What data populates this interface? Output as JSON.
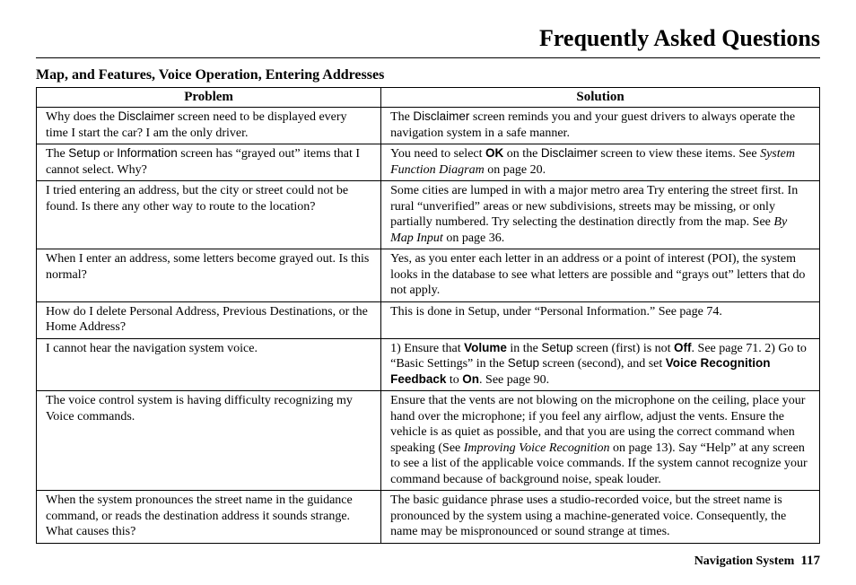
{
  "page_title": "Frequently Asked Questions",
  "section_heading": "Map, and Features, Voice Operation, Entering Addresses",
  "footer_label": "Navigation System",
  "footer_page": "117",
  "columns": {
    "problem": "Problem",
    "solution": "Solution"
  },
  "styling": {
    "font_family_body": "Times New Roman",
    "font_family_ui": "Arial",
    "title_fontsize_pt": 20,
    "section_fontsize_pt": 12,
    "cell_fontsize_pt": 11,
    "text_color": "#000000",
    "background_color": "#ffffff",
    "border_color": "#000000",
    "table_col_widths_pct": [
      44,
      56
    ]
  },
  "rows": [
    {
      "p_pre": "Why does the ",
      "p_sans1": "Disclaimer",
      "p_post": " screen need to be displayed every time I start the car? I am the only driver.",
      "s_pre": "The ",
      "s_sans1": "Disclaimer",
      "s_post": " screen reminds you and your guest drivers to always operate the navigation system in a safe manner."
    },
    {
      "p_pre": "The ",
      "p_sans1": "Setup",
      "p_mid1": " or ",
      "p_sans2": "Information",
      "p_post": " screen has “grayed out” items that I cannot select. Why?",
      "s_pre": "You need to select ",
      "s_bold1": "OK",
      "s_mid1": " on the ",
      "s_sans1": "Disclaimer",
      "s_mid2": " screen to view these items. See ",
      "s_ital1": "System Function Diagram",
      "s_post": " on page 20."
    },
    {
      "p_pre": "I tried entering an address, but the city or street could not be found. Is there any other way to route to the location?",
      "s_pre": "Some cities are lumped in with a major metro area Try entering the street first. In rural “unverified” areas or new subdivisions, streets may be missing, or only partially numbered. Try selecting the destination directly from the map. See ",
      "s_ital1": "By Map Input",
      "s_post": " on page 36."
    },
    {
      "p_pre": "When I enter an address, some letters become grayed out. Is this normal?",
      "s_pre": "Yes, as you enter each letter in an address or a point of interest (POI), the system looks in the database to see what letters are possible and “grays out” letters that do not apply."
    },
    {
      "p_pre": "How do I delete Personal Address, Previous Destinations, or the Home Address?",
      "s_pre": "This is done in Setup, under “Personal Information.” See page 74."
    },
    {
      "p_pre": "I cannot hear the navigation system voice.",
      "s_pre": "1) Ensure that ",
      "s_bold1": "Volume",
      "s_mid1": " in the ",
      "s_sans1": "Setup",
      "s_mid2": " screen (first) is not ",
      "s_bold2": "Off",
      "s_mid3": ". See page 71. 2) Go to “Basic Settings” in the ",
      "s_sans2": "Setup",
      "s_mid4": " screen (second), and set ",
      "s_bold3": "Voice Recognition Feedback",
      "s_mid5": " to ",
      "s_bold4": "On",
      "s_post": ". See page 90."
    },
    {
      "p_pre": "The voice control system is having difficulty recognizing my Voice commands.",
      "s_pre": "Ensure that the vents are not blowing on the microphone on the ceiling, place your hand over the microphone; if you feel any airflow, adjust the vents. Ensure the vehicle is as quiet as possible, and that you are using the correct command when speaking (See ",
      "s_ital1": "Improving Voice Recognition",
      "s_post": " on page 13). Say “Help” at any screen to see a list of the applicable voice commands. If the system cannot recognize your command because of background noise, speak louder."
    },
    {
      "p_pre": "When the system pronounces the street name in the guidance command, or reads the destination address it sounds strange. What causes this?",
      "s_pre": "The basic guidance phrase uses a studio-recorded voice, but the street name is pronounced by the system using a machine-generated voice. Consequently, the name may be mispronounced or sound strange at times."
    }
  ]
}
